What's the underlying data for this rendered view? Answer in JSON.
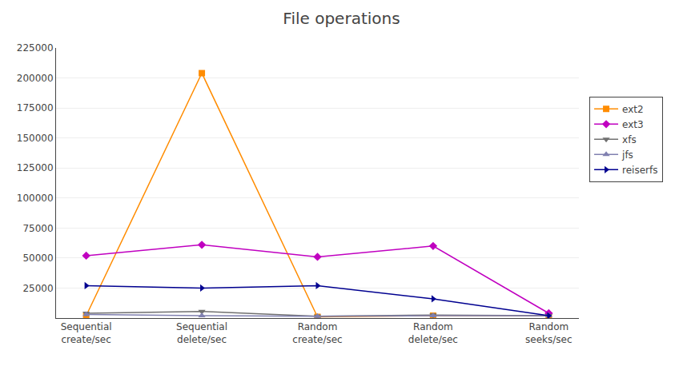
{
  "chart_data": {
    "type": "line",
    "title": "File operations",
    "categories": [
      "Sequential\ncreate/sec",
      "Sequential\ndelete/sec",
      "Random\ncreate/sec",
      "Random\ndelete/sec",
      "Random\nseeks/sec"
    ],
    "series": [
      {
        "name": "ext2",
        "color": "#ff8c00",
        "marker": "square",
        "line_style": "solid",
        "values": [
          2000,
          204000,
          1000,
          2000,
          2000
        ]
      },
      {
        "name": "ext3",
        "color": "#c000c0",
        "marker": "diamond",
        "line_style": "solid",
        "values": [
          52000,
          61000,
          51000,
          60000,
          4000
        ]
      },
      {
        "name": "xfs",
        "color": "#707070",
        "marker": "triangle-down",
        "line_style": "solid",
        "values": [
          4000,
          5500,
          1500,
          2500,
          2000
        ]
      },
      {
        "name": "jfs",
        "color": "#8080b0",
        "marker": "triangle-up",
        "line_style": "solid",
        "values": [
          3000,
          2000,
          1500,
          2000,
          2000
        ]
      },
      {
        "name": "reiserfs",
        "color": "#000090",
        "marker": "triangle-right",
        "line_style": "solid",
        "values": [
          27000,
          25000,
          27000,
          16000,
          2000
        ]
      }
    ],
    "ylim": [
      0,
      225000
    ],
    "yticks": [
      25000,
      50000,
      75000,
      100000,
      125000,
      150000,
      175000,
      200000,
      225000
    ],
    "grid": true,
    "legend": "right"
  }
}
